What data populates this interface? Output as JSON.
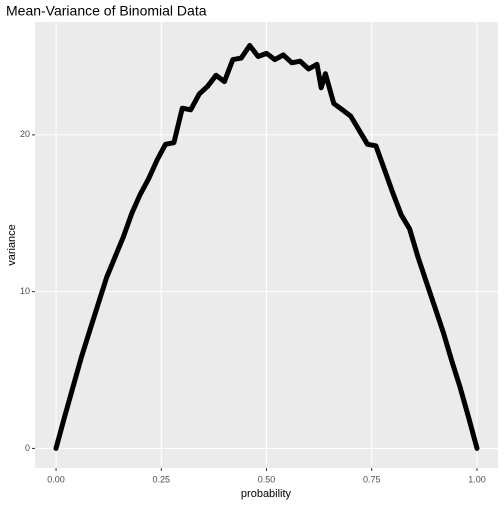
{
  "chart_data": {
    "type": "line",
    "title": "Mean-Variance of Binomial Data",
    "x_label": "probability",
    "y_label": "variance",
    "x": [
      0,
      0.02,
      0.04,
      0.06,
      0.08,
      0.1,
      0.12,
      0.14,
      0.16,
      0.18,
      0.2,
      0.22,
      0.24,
      0.26,
      0.28,
      0.3,
      0.32,
      0.34,
      0.36,
      0.38,
      0.4,
      0.42,
      0.44,
      0.46,
      0.48,
      0.5,
      0.52,
      0.54,
      0.56,
      0.58,
      0.6,
      0.62,
      0.63,
      0.64,
      0.66,
      0.68,
      0.7,
      0.72,
      0.74,
      0.76,
      0.78,
      0.8,
      0.82,
      0.84,
      0.86,
      0.88,
      0.9,
      0.92,
      0.94,
      0.96,
      0.98,
      1
    ],
    "values": [
      0,
      2.0,
      3.9,
      5.8,
      7.5,
      9.2,
      10.9,
      12.2,
      13.5,
      15.0,
      16.2,
      17.2,
      18.4,
      19.4,
      19.5,
      21.7,
      21.6,
      22.6,
      23.1,
      23.8,
      23.4,
      24.8,
      24.9,
      25.7,
      25.0,
      25.2,
      24.8,
      25.1,
      24.6,
      24.7,
      24.2,
      24.5,
      23.0,
      23.9,
      22.0,
      21.6,
      21.2,
      20.3,
      19.4,
      19.3,
      17.8,
      16.3,
      14.9,
      14.0,
      12.2,
      10.6,
      9.0,
      7.4,
      5.6,
      3.9,
      2.0,
      0
    ],
    "color": "#000000",
    "xlim": [
      -0.05,
      1.05
    ],
    "ylim": [
      -1.25,
      27.2
    ],
    "xticks": [
      {
        "value": 0,
        "label": "0.00"
      },
      {
        "value": 0.25,
        "label": "0.25"
      },
      {
        "value": 0.5,
        "label": "0.50"
      },
      {
        "value": 0.75,
        "label": "0.75"
      },
      {
        "value": 1,
        "label": "1.00"
      }
    ],
    "yticks": [
      0,
      10,
      20
    ],
    "grid": true
  }
}
